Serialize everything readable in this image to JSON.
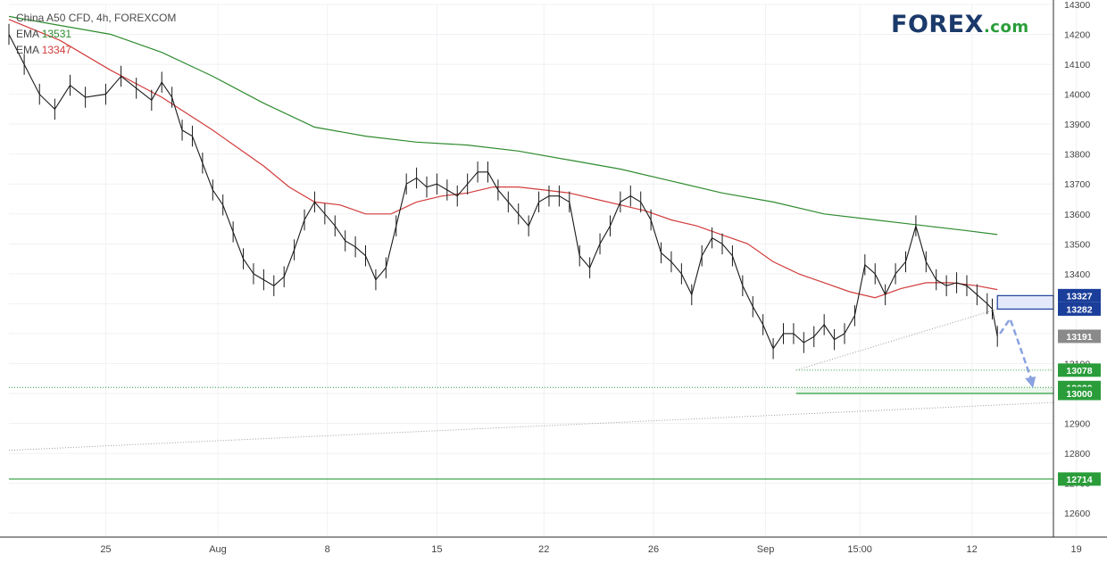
{
  "brand": {
    "main": "FOREX",
    "suffix": ".com"
  },
  "legend": {
    "title": "China A50 CFD, 4h, FOREXCOM",
    "ema1_label": "EMA",
    "ema1_value": "13531",
    "ema2_label": "EMA",
    "ema2_value": "13347"
  },
  "colors": {
    "ema_long": "#2e8b2e",
    "ema_short": "#d23c3c",
    "resistance_zone": "#1a3e9a",
    "support": "#2a9d3a",
    "current": "#8a8a8a",
    "arrow": "#8aa2e0"
  },
  "chart_data": {
    "type": "line",
    "title": "China A50 CFD, 4h, FOREXCOM",
    "ylim": [
      12520,
      14300
    ],
    "y_ticks": [
      12600,
      12700,
      12800,
      12900,
      13000,
      13100,
      13200,
      13300,
      13400,
      13500,
      13600,
      13700,
      13800,
      13900,
      14000,
      14100,
      14200,
      14300
    ],
    "x_ticks": [
      "25",
      "Aug",
      "8",
      "15",
      "22",
      "26",
      "Sep",
      "15:00",
      "12",
      "19",
      "26"
    ],
    "bar_index_range": [
      0,
      410
    ],
    "x_tick_positions": [
      38,
      82,
      125,
      168,
      210,
      253,
      297,
      334,
      378,
      419,
      460
    ],
    "price_series": {
      "name": "China A50 CFD",
      "points": [
        [
          0,
          14200
        ],
        [
          6,
          14100
        ],
        [
          12,
          14000
        ],
        [
          18,
          13950
        ],
        [
          24,
          14030
        ],
        [
          30,
          13990
        ],
        [
          38,
          14000
        ],
        [
          44,
          14060
        ],
        [
          50,
          14020
        ],
        [
          56,
          13980
        ],
        [
          60,
          14040
        ],
        [
          64,
          13990
        ],
        [
          68,
          13880
        ],
        [
          72,
          13860
        ],
        [
          76,
          13770
        ],
        [
          80,
          13680
        ],
        [
          84,
          13630
        ],
        [
          88,
          13540
        ],
        [
          92,
          13450
        ],
        [
          96,
          13400
        ],
        [
          100,
          13380
        ],
        [
          104,
          13360
        ],
        [
          108,
          13390
        ],
        [
          112,
          13480
        ],
        [
          116,
          13580
        ],
        [
          120,
          13640
        ],
        [
          124,
          13600
        ],
        [
          128,
          13560
        ],
        [
          132,
          13510
        ],
        [
          136,
          13490
        ],
        [
          140,
          13460
        ],
        [
          144,
          13380
        ],
        [
          148,
          13420
        ],
        [
          152,
          13560
        ],
        [
          156,
          13700
        ],
        [
          160,
          13720
        ],
        [
          164,
          13690
        ],
        [
          168,
          13700
        ],
        [
          172,
          13680
        ],
        [
          176,
          13660
        ],
        [
          180,
          13700
        ],
        [
          184,
          13740
        ],
        [
          188,
          13740
        ],
        [
          192,
          13680
        ],
        [
          196,
          13640
        ],
        [
          200,
          13600
        ],
        [
          204,
          13560
        ],
        [
          208,
          13640
        ],
        [
          212,
          13660
        ],
        [
          216,
          13660
        ],
        [
          220,
          13640
        ],
        [
          224,
          13460
        ],
        [
          228,
          13420
        ],
        [
          232,
          13500
        ],
        [
          236,
          13560
        ],
        [
          240,
          13640
        ],
        [
          244,
          13660
        ],
        [
          248,
          13640
        ],
        [
          252,
          13580
        ],
        [
          256,
          13470
        ],
        [
          260,
          13440
        ],
        [
          264,
          13400
        ],
        [
          268,
          13330
        ],
        [
          272,
          13460
        ],
        [
          276,
          13520
        ],
        [
          280,
          13500
        ],
        [
          284,
          13460
        ],
        [
          288,
          13360
        ],
        [
          292,
          13290
        ],
        [
          296,
          13230
        ],
        [
          300,
          13150
        ],
        [
          304,
          13200
        ],
        [
          308,
          13200
        ],
        [
          312,
          13170
        ],
        [
          316,
          13190
        ],
        [
          320,
          13230
        ],
        [
          324,
          13180
        ],
        [
          328,
          13200
        ],
        [
          332,
          13260
        ],
        [
          336,
          13430
        ],
        [
          340,
          13400
        ],
        [
          344,
          13330
        ],
        [
          348,
          13400
        ],
        [
          352,
          13440
        ],
        [
          356,
          13560
        ],
        [
          360,
          13440
        ],
        [
          364,
          13380
        ],
        [
          368,
          13360
        ],
        [
          372,
          13370
        ],
        [
          376,
          13360
        ],
        [
          380,
          13330
        ],
        [
          384,
          13300
        ],
        [
          386,
          13282
        ],
        [
          388,
          13191
        ]
      ]
    },
    "ema_long": {
      "name": "EMA 13531",
      "points": [
        [
          0,
          14260
        ],
        [
          20,
          14230
        ],
        [
          40,
          14200
        ],
        [
          60,
          14140
        ],
        [
          80,
          14060
        ],
        [
          100,
          13970
        ],
        [
          120,
          13890
        ],
        [
          140,
          13860
        ],
        [
          160,
          13840
        ],
        [
          180,
          13830
        ],
        [
          200,
          13810
        ],
        [
          220,
          13780
        ],
        [
          240,
          13750
        ],
        [
          260,
          13710
        ],
        [
          280,
          13670
        ],
        [
          300,
          13640
        ],
        [
          320,
          13600
        ],
        [
          340,
          13580
        ],
        [
          360,
          13560
        ],
        [
          375,
          13545
        ],
        [
          388,
          13531
        ]
      ]
    },
    "ema_short": {
      "name": "EMA 13347",
      "points": [
        [
          0,
          14250
        ],
        [
          20,
          14180
        ],
        [
          40,
          14080
        ],
        [
          60,
          13990
        ],
        [
          80,
          13880
        ],
        [
          90,
          13820
        ],
        [
          100,
          13760
        ],
        [
          110,
          13690
        ],
        [
          120,
          13640
        ],
        [
          130,
          13630
        ],
        [
          140,
          13600
        ],
        [
          150,
          13600
        ],
        [
          160,
          13640
        ],
        [
          170,
          13660
        ],
        [
          180,
          13670
        ],
        [
          190,
          13690
        ],
        [
          200,
          13690
        ],
        [
          210,
          13680
        ],
        [
          220,
          13670
        ],
        [
          230,
          13650
        ],
        [
          240,
          13630
        ],
        [
          250,
          13610
        ],
        [
          260,
          13580
        ],
        [
          270,
          13560
        ],
        [
          280,
          13530
        ],
        [
          290,
          13500
        ],
        [
          300,
          13440
        ],
        [
          310,
          13400
        ],
        [
          320,
          13370
        ],
        [
          330,
          13340
        ],
        [
          340,
          13320
        ],
        [
          350,
          13350
        ],
        [
          360,
          13370
        ],
        [
          370,
          13370
        ],
        [
          380,
          13360
        ],
        [
          388,
          13347
        ]
      ]
    },
    "levels": [
      {
        "price": 13327,
        "label": "13327",
        "color": "#1a3e9a"
      },
      {
        "price": 13282,
        "label": "13282",
        "color": "#1a3e9a"
      },
      {
        "price": 13191,
        "label": "13191",
        "color": "#8a8a8a"
      },
      {
        "price": 13078,
        "label": "13078",
        "color": "#2a9d3a"
      },
      {
        "price": 13020,
        "label": "13020",
        "color": "#2a9d3a"
      },
      {
        "price": 13000,
        "label": "13000",
        "color": "#2a9d3a"
      },
      {
        "price": 12714,
        "label": "12714",
        "color": "#2a9d3a"
      }
    ],
    "resistance_zone": {
      "low": 13282,
      "high": 13327,
      "from_bar": 388
    },
    "support_zone": {
      "low": 13000,
      "high": 13020,
      "from_bar": 309
    },
    "trendline_short": {
      "from": [
        309,
        13078
      ],
      "to": [
        388,
        13282
      ]
    },
    "trendline_long": {
      "from": [
        0,
        12810
      ],
      "to": [
        410,
        12970
      ]
    },
    "projection_arrow": {
      "points": [
        [
          389,
          13200
        ],
        [
          393,
          13250
        ],
        [
          402,
          13030
        ]
      ]
    },
    "legend_position": "top-left"
  }
}
